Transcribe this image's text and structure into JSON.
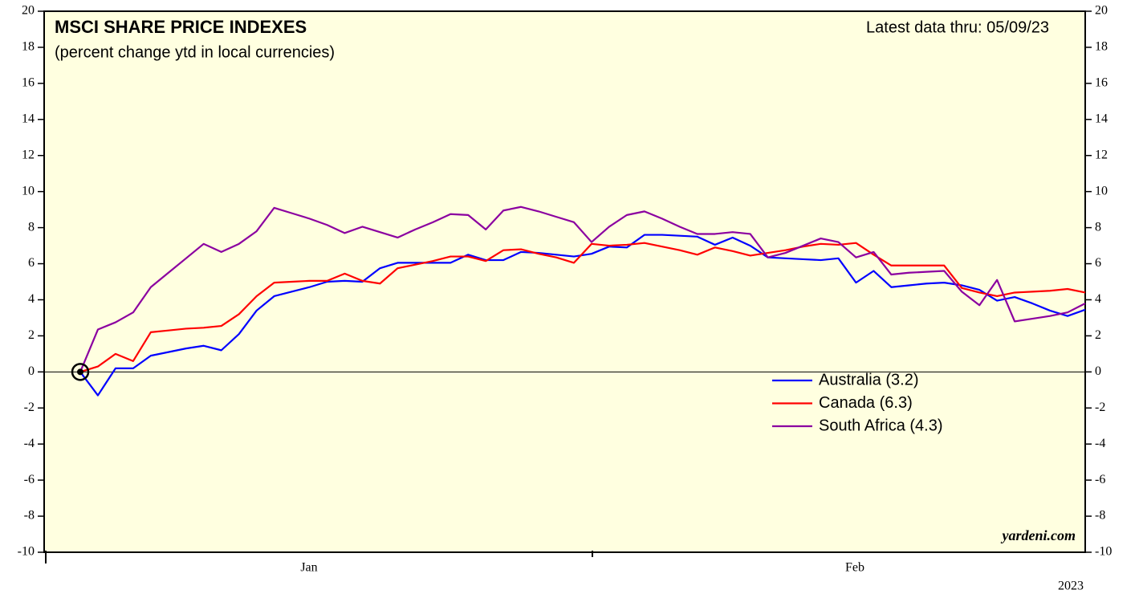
{
  "chart_data": {
    "type": "line",
    "title": "MSCI SHARE PRICE INDEXES",
    "subtitle": "(percent change ytd in local currencies)",
    "annotation": "Latest data thru: 05/09/23",
    "source": "yardeni.com",
    "x_month_labels": [
      "Jan",
      "Feb"
    ],
    "x_year_label": "2023",
    "ylim": [
      -10,
      20
    ],
    "yticks": [
      -10,
      -8,
      -6,
      -4,
      -2,
      0,
      2,
      4,
      6,
      8,
      10,
      12,
      14,
      16,
      18,
      20
    ],
    "series": [
      {
        "name": "Australia (3.2)",
        "color": "#0000ff",
        "values": [
          0,
          -1.3,
          0.2,
          0.2,
          0.9,
          1.1,
          1.3,
          1.45,
          1.2,
          2.1,
          3.4,
          4.2,
          4.45,
          4.7,
          5.0,
          5.05,
          5.0,
          5.75,
          6.05,
          6.05,
          6.05,
          6.05,
          6.5,
          6.2,
          6.2,
          6.65,
          6.6,
          6.5,
          6.4,
          6.55,
          6.95,
          6.9,
          7.6,
          7.6,
          7.55,
          7.5,
          7.05,
          7.45,
          7.0,
          6.35,
          6.3,
          6.25,
          6.2,
          6.3,
          4.95,
          5.6,
          4.7,
          4.8,
          4.9,
          4.95,
          4.8,
          4.55,
          3.95,
          4.15,
          3.8,
          3.4,
          3.1,
          3.45
        ]
      },
      {
        "name": "Canada (6.3)",
        "color": "#ff0000",
        "values": [
          0,
          0.3,
          1.0,
          0.6,
          2.2,
          2.3,
          2.4,
          2.45,
          2.55,
          3.2,
          4.2,
          4.95,
          5.0,
          5.05,
          5.05,
          5.45,
          5.05,
          4.9,
          5.75,
          5.95,
          6.15,
          6.4,
          6.4,
          6.15,
          6.75,
          6.8,
          6.55,
          6.35,
          6.05,
          7.1,
          7.0,
          7.05,
          7.15,
          6.95,
          6.75,
          6.5,
          6.9,
          6.7,
          6.45,
          6.6,
          6.75,
          6.95,
          7.1,
          7.05,
          7.15,
          6.5,
          5.9,
          5.9,
          5.9,
          5.9,
          4.65,
          4.4,
          4.2,
          4.4,
          4.45,
          4.5,
          4.6,
          4.4
        ]
      },
      {
        "name": "South Africa (4.3)",
        "color": "#8b00a0",
        "values": [
          0,
          2.35,
          2.75,
          3.3,
          4.7,
          5.5,
          6.3,
          7.1,
          6.65,
          7.1,
          7.8,
          9.1,
          8.8,
          8.5,
          8.15,
          7.7,
          8.05,
          7.75,
          7.45,
          7.9,
          8.3,
          8.75,
          8.7,
          7.9,
          8.95,
          9.15,
          8.9,
          8.6,
          8.3,
          7.2,
          8.05,
          8.7,
          8.9,
          8.5,
          8.05,
          7.65,
          7.65,
          7.75,
          7.65,
          6.35,
          6.6,
          7.0,
          7.4,
          7.2,
          6.35,
          6.65,
          5.4,
          5.5,
          5.55,
          5.6,
          4.45,
          3.7,
          5.1,
          2.8,
          2.95,
          3.1,
          3.3,
          3.8
        ]
      }
    ]
  }
}
